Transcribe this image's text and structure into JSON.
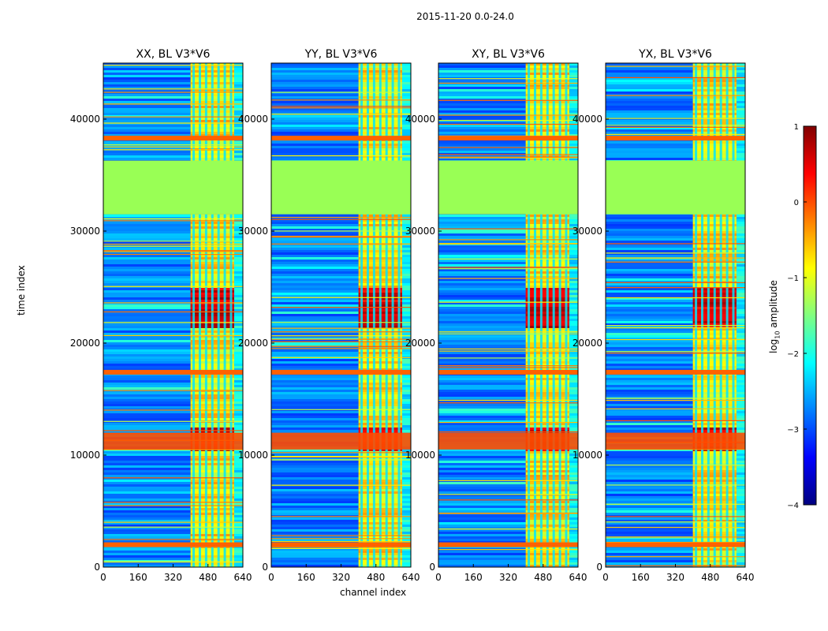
{
  "figure": {
    "suptitle": "2015-11-20 0.0-24.0",
    "ylabel": "time index",
    "xlabel": "channel index"
  },
  "colorbar": {
    "label_prefix": "log",
    "label_sub": "10",
    "label_suffix": " amplitude",
    "ticks": [
      "1",
      "0",
      "−1",
      "−2",
      "−3",
      "−4"
    ],
    "colors": [
      "#800000",
      "#ff0000",
      "#ff8000",
      "#ffff00",
      "#80ff80",
      "#00ffff",
      "#0080ff",
      "#0000ff",
      "#000080"
    ]
  },
  "chart_data": [
    {
      "type": "heatmap",
      "title": "XX, BL V3*V6",
      "xlabel": "channel index",
      "ylabel": "time index",
      "xlim": [
        0,
        640
      ],
      "ylim": [
        0,
        45000
      ],
      "xticks": [
        0,
        160,
        320,
        480,
        640
      ],
      "yticks": [
        0,
        10000,
        20000,
        30000,
        40000
      ],
      "colormap": "jet",
      "value_range": [
        -4,
        1
      ],
      "features": {
        "flagged_time_range": [
          31500,
          36300
        ],
        "strong_channel_band": [
          400,
          600
        ],
        "strong_time_bursts": [
          [
            10500,
            12500
          ],
          [
            21500,
            25000
          ]
        ]
      }
    },
    {
      "type": "heatmap",
      "title": "YY, BL V3*V6",
      "xlabel": "channel index",
      "ylabel": "time index",
      "xlim": [
        0,
        640
      ],
      "ylim": [
        0,
        45000
      ],
      "xticks": [
        0,
        160,
        320,
        480,
        640
      ],
      "yticks": [
        0,
        10000,
        20000,
        30000,
        40000
      ],
      "colormap": "jet",
      "value_range": [
        -4,
        1
      ],
      "features": {
        "flagged_time_range": [
          31500,
          36300
        ],
        "strong_channel_band": [
          400,
          600
        ],
        "strong_time_bursts": [
          [
            10500,
            12500
          ],
          [
            21500,
            25000
          ]
        ]
      }
    },
    {
      "type": "heatmap",
      "title": "XY, BL V3*V6",
      "xlabel": "channel index",
      "ylabel": "time index",
      "xlim": [
        0,
        640
      ],
      "ylim": [
        0,
        45000
      ],
      "xticks": [
        0,
        160,
        320,
        480,
        640
      ],
      "yticks": [
        0,
        10000,
        20000,
        30000,
        40000
      ],
      "colormap": "jet",
      "value_range": [
        -4,
        1
      ],
      "features": {
        "flagged_time_range": [
          31500,
          36300
        ],
        "strong_channel_band": [
          400,
          600
        ],
        "strong_time_bursts": [
          [
            10500,
            12500
          ],
          [
            21500,
            25000
          ]
        ]
      }
    },
    {
      "type": "heatmap",
      "title": "YX, BL V3*V6",
      "xlabel": "channel index",
      "ylabel": "time index",
      "xlim": [
        0,
        640
      ],
      "ylim": [
        0,
        45000
      ],
      "xticks": [
        0,
        160,
        320,
        480,
        640
      ],
      "yticks": [
        0,
        10000,
        20000,
        30000,
        40000
      ],
      "colormap": "jet",
      "value_range": [
        -4,
        1
      ],
      "features": {
        "flagged_time_range": [
          31500,
          36300
        ],
        "strong_channel_band": [
          400,
          600
        ],
        "strong_time_bursts": [
          [
            10500,
            12500
          ],
          [
            21500,
            25000
          ]
        ]
      }
    }
  ]
}
